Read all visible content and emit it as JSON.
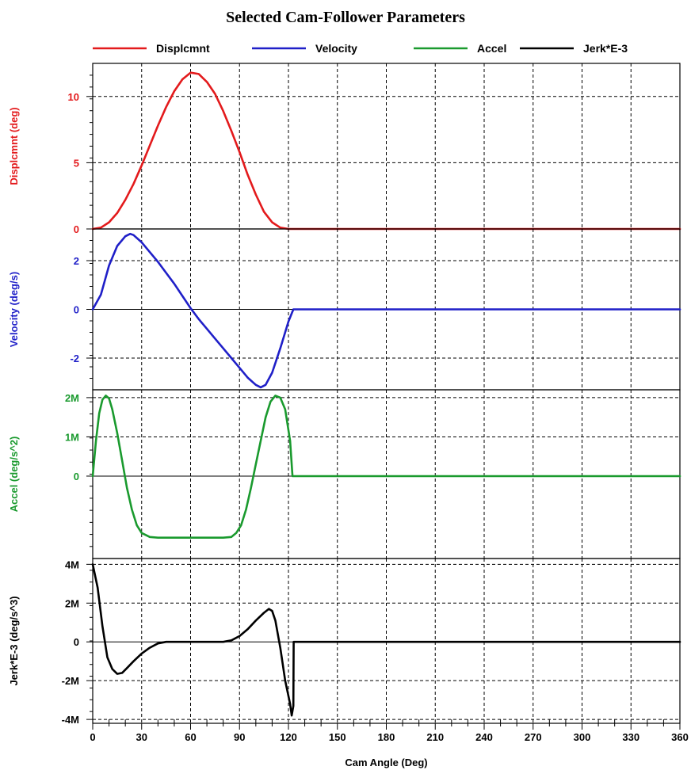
{
  "chart_data": {
    "type": "line",
    "title": "Selected Cam-Follower Parameters",
    "xlabel": "Cam Angle (Deg)",
    "xlim": [
      0,
      360
    ],
    "xticks": [
      0,
      30,
      60,
      90,
      120,
      150,
      180,
      210,
      240,
      270,
      300,
      330,
      360
    ],
    "grid": true,
    "legend_position": "top",
    "legend": [
      "Displcmnt",
      "Velocity",
      "Accel",
      "Jerk*E-3"
    ],
    "panels": [
      {
        "name": "Displcmnt",
        "ylabel": "Displcmnt (deg)",
        "color": "#e31a1c",
        "ylim": [
          0,
          12.5
        ],
        "yticks": [
          {
            "v": 0,
            "label": "0"
          },
          {
            "v": 5,
            "label": "5"
          },
          {
            "v": 10,
            "label": "10"
          }
        ],
        "x": [
          0,
          5,
          10,
          15,
          20,
          25,
          30,
          35,
          40,
          45,
          50,
          55,
          60,
          65,
          70,
          75,
          80,
          85,
          90,
          95,
          100,
          105,
          110,
          115,
          120,
          123,
          130,
          200,
          280,
          360
        ],
        "y": [
          0,
          0.1,
          0.5,
          1.2,
          2.2,
          3.4,
          4.8,
          6.3,
          7.8,
          9.2,
          10.4,
          11.3,
          11.8,
          11.7,
          11.1,
          10.2,
          8.9,
          7.4,
          5.8,
          4.1,
          2.6,
          1.3,
          0.5,
          0.1,
          0,
          0,
          0,
          0,
          0,
          0
        ]
      },
      {
        "name": "Velocity",
        "ylabel": "Velocity (deg/s)",
        "color": "#1f1fc8",
        "ylim": [
          -3.3,
          3.3
        ],
        "yticks": [
          {
            "v": -2,
            "label": "-2"
          },
          {
            "v": 0,
            "label": "0"
          },
          {
            "v": 2,
            "label": "2"
          }
        ],
        "x": [
          0,
          5,
          10,
          15,
          20,
          23,
          25,
          30,
          35,
          40,
          45,
          50,
          55,
          60,
          65,
          70,
          75,
          80,
          85,
          90,
          95,
          100,
          103,
          106,
          110,
          115,
          120,
          123,
          200,
          280,
          360
        ],
        "y": [
          0,
          0.6,
          1.8,
          2.6,
          3.0,
          3.1,
          3.05,
          2.75,
          2.35,
          1.95,
          1.5,
          1.05,
          0.55,
          0.05,
          -0.4,
          -0.8,
          -1.2,
          -1.6,
          -2.0,
          -2.4,
          -2.8,
          -3.1,
          -3.2,
          -3.1,
          -2.6,
          -1.6,
          -0.5,
          0,
          0,
          0,
          0
        ]
      },
      {
        "name": "Accel",
        "ylabel": "Accel (deg/s^2)",
        "color": "#1a9a2e",
        "ylim": [
          -2100000,
          2200000
        ],
        "yticks": [
          {
            "v": 0,
            "label": "0"
          },
          {
            "v": 1000000,
            "label": "1M"
          },
          {
            "v": 2000000,
            "label": "2M"
          }
        ],
        "x": [
          0,
          2,
          4,
          6,
          8,
          10,
          12,
          15,
          18,
          21,
          24,
          27,
          30,
          35,
          40,
          50,
          60,
          70,
          80,
          85,
          88,
          91,
          94,
          97,
          100,
          103,
          106,
          109,
          112,
          115,
          118,
          121,
          122.5,
          124,
          200,
          280,
          360
        ],
        "y": [
          0,
          900000,
          1600000,
          1950000,
          2050000,
          1980000,
          1700000,
          1100000,
          400000,
          -300000,
          -850000,
          -1250000,
          -1450000,
          -1550000,
          -1570000,
          -1570000,
          -1570000,
          -1570000,
          -1570000,
          -1550000,
          -1450000,
          -1250000,
          -850000,
          -300000,
          300000,
          900000,
          1500000,
          1900000,
          2050000,
          2000000,
          1700000,
          900000,
          0,
          0,
          0,
          0,
          0
        ]
      },
      {
        "name": "Jerk*E-3",
        "ylabel": "Jerk*E-3 (deg/s^3)",
        "color": "#000000",
        "ylim": [
          -4200000,
          4300000
        ],
        "yticks": [
          {
            "v": -4000000,
            "label": "-4M"
          },
          {
            "v": -2000000,
            "label": "-2M"
          },
          {
            "v": 0,
            "label": "0"
          },
          {
            "v": 2000000,
            "label": "2M"
          },
          {
            "v": 4000000,
            "label": "4M"
          }
        ],
        "x": [
          0,
          3,
          6,
          9,
          12,
          15,
          18,
          21,
          25,
          30,
          35,
          40,
          45,
          80,
          85,
          90,
          95,
          100,
          105,
          108,
          110,
          112,
          115,
          118,
          121,
          122,
          123,
          123.2,
          130,
          200,
          280,
          360
        ],
        "y": [
          4000000,
          2800000,
          800000,
          -800000,
          -1400000,
          -1650000,
          -1600000,
          -1350000,
          -1000000,
          -600000,
          -300000,
          -80000,
          0,
          0,
          80000,
          300000,
          650000,
          1100000,
          1500000,
          1700000,
          1600000,
          1100000,
          -300000,
          -2000000,
          -3200000,
          -3800000,
          -3300000,
          0,
          0,
          0,
          0,
          0
        ]
      }
    ]
  }
}
